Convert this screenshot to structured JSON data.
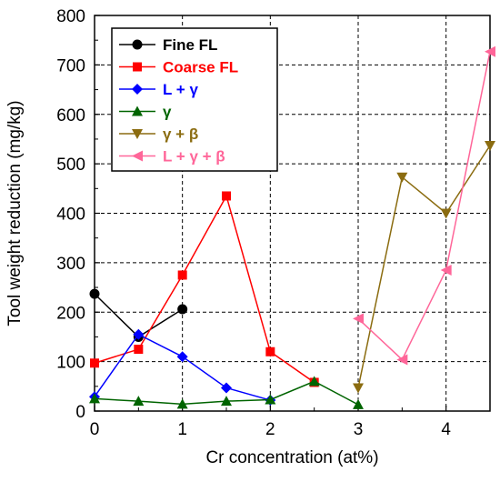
{
  "chart_data": {
    "type": "line",
    "title": "",
    "xlabel": "Cr concentration (at%)",
    "ylabel": "Tool weight reduction (mg/kg)",
    "xlim": [
      0,
      4.5
    ],
    "ylim": [
      0,
      800
    ],
    "xticks": [
      0,
      1,
      2,
      3,
      4
    ],
    "yticks": [
      0,
      100,
      200,
      300,
      400,
      500,
      600,
      700,
      800
    ],
    "grid": true,
    "grid_style": "dashed",
    "legend_position": "top-left",
    "series": [
      {
        "name": "Fine FL",
        "color": "#000000",
        "marker": "circle",
        "x": [
          0,
          0.5,
          1
        ],
        "y": [
          237,
          150,
          206
        ]
      },
      {
        "name": "Coarse FL",
        "color": "#ff0000",
        "marker": "square",
        "x": [
          0,
          0.5,
          1,
          1.5,
          2,
          2.5
        ],
        "y": [
          97,
          125,
          275,
          435,
          120,
          58
        ]
      },
      {
        "name": "L + γ",
        "color": "#0000ff",
        "marker": "diamond",
        "x": [
          0,
          0.5,
          1,
          1.5,
          2
        ],
        "y": [
          29,
          155,
          110,
          47,
          22
        ]
      },
      {
        "name": "γ",
        "color": "#006400",
        "marker": "triangle-up",
        "x": [
          0,
          0.5,
          1,
          1.5,
          2,
          2.5,
          3
        ],
        "y": [
          25,
          20,
          14,
          20,
          23,
          60,
          13
        ]
      },
      {
        "name": "γ + β",
        "color": "#8b6c10",
        "marker": "triangle-down",
        "x": [
          3,
          3.5,
          4,
          4.5
        ],
        "y": [
          47,
          473,
          400,
          537
        ]
      },
      {
        "name": "L + γ + β",
        "color": "#ff6699",
        "marker": "triangle-left",
        "x": [
          3,
          3.5,
          4,
          4.5
        ],
        "y": [
          187,
          104,
          285,
          727
        ]
      }
    ]
  }
}
